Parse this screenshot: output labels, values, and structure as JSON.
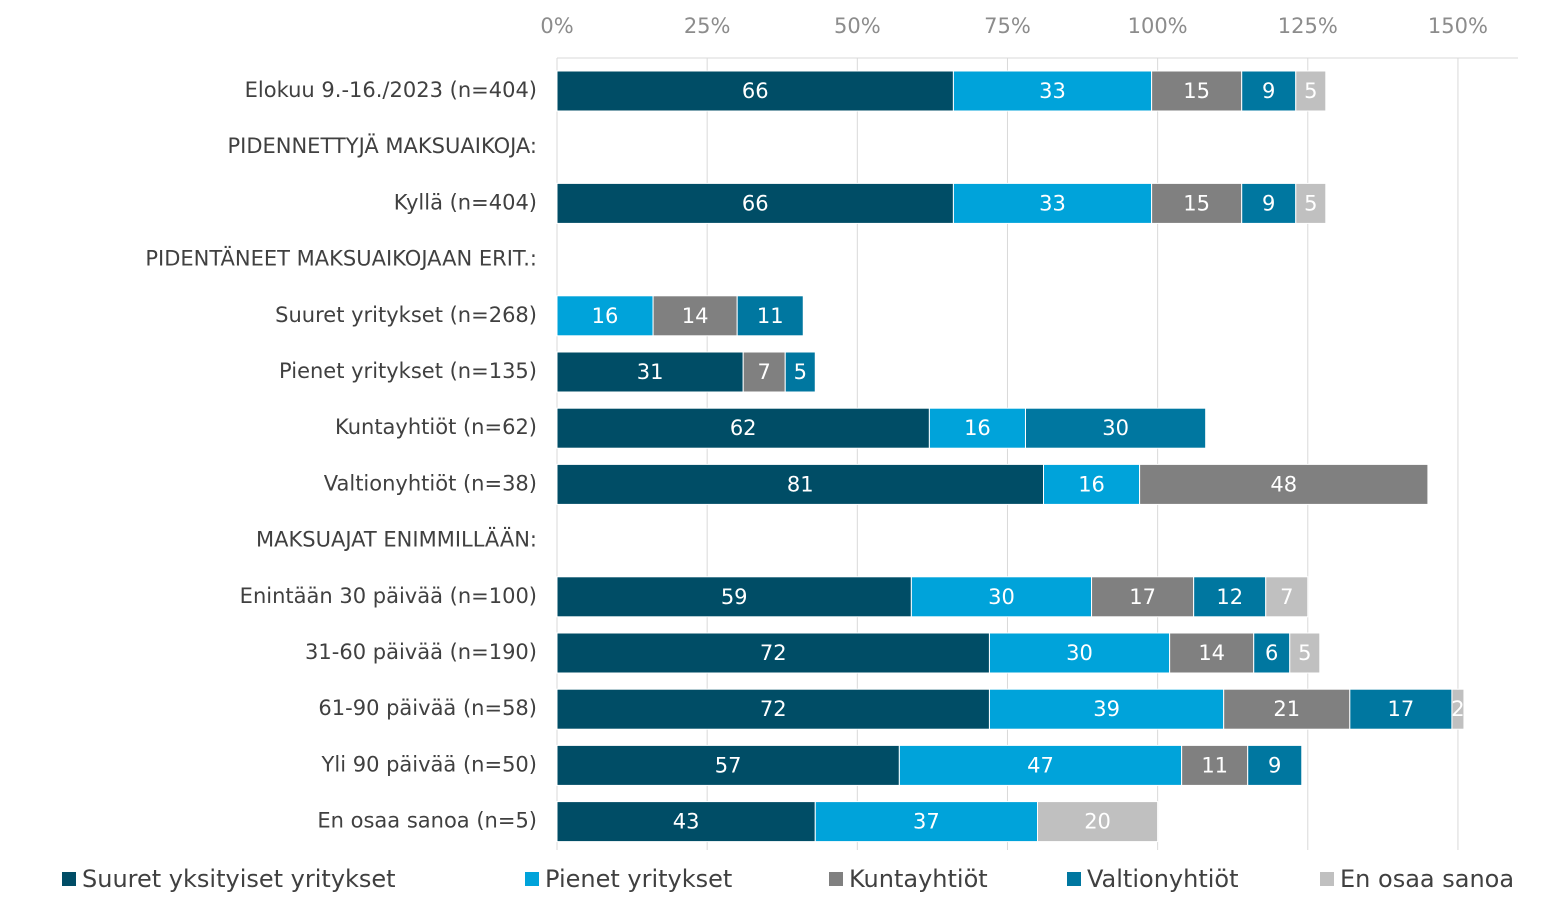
{
  "chart_data": {
    "type": "stacked-bar-horizontal",
    "categories": [
      "Elokuu 9.-16./2023 (n=404)",
      "PIDENNETTYJÄ MAKSUAIKOJA:",
      "Kyllä (n=404)",
      "PIDENTÄNEET MAKSUAIKOJAAN ERIT.:",
      "Suuret yritykset (n=268)",
      "Pienet yritykset (n=135)",
      "Kuntayhtiöt (n=62)",
      "Valtionyhtiöt (n=38)",
      "MAKSUAJAT ENIMMILLÄÄN:",
      "Enintään 30 päivää (n=100)",
      "31-60 päivää (n=190)",
      "61-90 päivää (n=58)",
      "Yli 90 päivää (n=50)",
      "En osaa sanoa (n=5)"
    ],
    "series": [
      {
        "name": "Suuret yksityiset yritykset",
        "color": "#004d66",
        "values": [
          66,
          null,
          66,
          null,
          null,
          31,
          62,
          81,
          null,
          59,
          72,
          72,
          57,
          43
        ]
      },
      {
        "name": "Pienet yritykset",
        "color": "#00a3da",
        "values": [
          33,
          null,
          33,
          null,
          16,
          null,
          16,
          16,
          null,
          30,
          30,
          39,
          47,
          37
        ]
      },
      {
        "name": "Kuntayhtiöt",
        "color": "#808080",
        "values": [
          15,
          null,
          15,
          null,
          14,
          7,
          null,
          48,
          null,
          17,
          14,
          21,
          11,
          null
        ]
      },
      {
        "name": "Valtionyhtiöt",
        "color": "#0077a0",
        "values": [
          9,
          null,
          9,
          null,
          11,
          5,
          30,
          null,
          null,
          12,
          6,
          17,
          9,
          null
        ]
      },
      {
        "name": "En osaa sanoa",
        "color": "#c0c0c0",
        "values": [
          5,
          null,
          5,
          null,
          null,
          null,
          null,
          null,
          null,
          7,
          5,
          2,
          null,
          20
        ]
      }
    ],
    "xlim": [
      0,
      160
    ],
    "xticks": [
      {
        "value": 0,
        "label": "0%"
      },
      {
        "value": 25,
        "label": "25%"
      },
      {
        "value": 50,
        "label": "50%"
      },
      {
        "value": 75,
        "label": "75%"
      },
      {
        "value": 100,
        "label": "100%"
      },
      {
        "value": 125,
        "label": "125%"
      },
      {
        "value": 150,
        "label": "150%"
      }
    ],
    "grid": true,
    "legend": "bottom"
  }
}
